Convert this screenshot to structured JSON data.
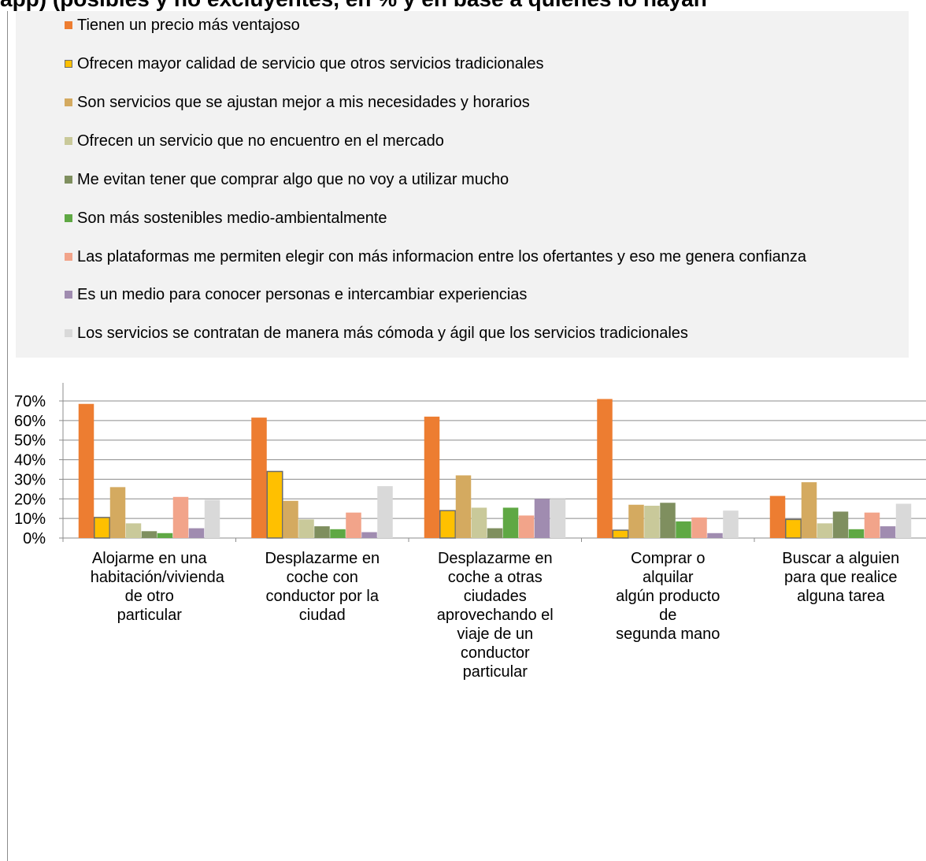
{
  "title": "app) (posibles y no excluyentes, en % y en base a quienes lo hayan",
  "colors": {
    "precio": "#ED7D31",
    "calidad": "#FFC000",
    "ajustan": "#D4AA60",
    "mercado": "#C9C99A",
    "evitan": "#7F8F5F",
    "sostenibles": "#5FA844",
    "plataformas": "#F2A48A",
    "personas": "#A08CB0",
    "comoda": "#D9D9D9"
  },
  "chart_data": {
    "type": "bar",
    "title": "",
    "xlabel": "",
    "ylabel": "",
    "ylim": [
      0,
      0.7
    ],
    "yticks": [
      "0%",
      "10%",
      "20%",
      "30%",
      "40%",
      "50%",
      "60%",
      "70%"
    ],
    "grid": true,
    "legend_position": "top",
    "categories": [
      "Alojarme en una habitación/vivienda de otro particular",
      "Desplazarme en coche con conductor por la ciudad",
      "Desplazarme en coche a otras ciudades aprovechando el viaje de un conductor particular",
      "Comprar o alquilar algún producto de segunda mano",
      "Buscar a alguien para que realice alguna tarea"
    ],
    "series": [
      {
        "name": "Tienen un precio más ventajoso",
        "color_key": "precio",
        "values": [
          0.685,
          0.615,
          0.62,
          0.71,
          0.215
        ]
      },
      {
        "name": "Ofrecen mayor calidad de servicio que otros servicios tradicionales",
        "color_key": "calidad",
        "values": [
          0.105,
          0.34,
          0.14,
          0.04,
          0.095
        ]
      },
      {
        "name": "Son servicios que se ajustan mejor a mis necesidades y horarios",
        "color_key": "ajustan",
        "values": [
          0.26,
          0.19,
          0.32,
          0.17,
          0.285
        ]
      },
      {
        "name": "Ofrecen un servicio que no encuentro en el mercado",
        "color_key": "mercado",
        "values": [
          0.075,
          0.095,
          0.155,
          0.165,
          0.075
        ]
      },
      {
        "name": "Me evitan tener que comprar algo que no voy a utilizar mucho",
        "color_key": "evitan",
        "values": [
          0.035,
          0.06,
          0.05,
          0.18,
          0.135
        ]
      },
      {
        "name": "Son más sostenibles medio-ambientalmente",
        "color_key": "sostenibles",
        "values": [
          0.025,
          0.045,
          0.155,
          0.085,
          0.045
        ]
      },
      {
        "name": "Las plataformas me permiten elegir con más informacion entre los ofertantes y eso me genera confianza",
        "color_key": "plataformas",
        "values": [
          0.21,
          0.13,
          0.115,
          0.105,
          0.13
        ]
      },
      {
        "name": "Es un medio para conocer personas e intercambiar experiencias",
        "color_key": "personas",
        "values": [
          0.05,
          0.03,
          0.2,
          0.025,
          0.06
        ]
      },
      {
        "name": "Los servicios se contratan de manera más cómoda y ágil que los servicios tradicionales",
        "color_key": "comoda",
        "values": [
          0.195,
          0.265,
          0.2,
          0.14,
          0.175
        ]
      }
    ]
  }
}
